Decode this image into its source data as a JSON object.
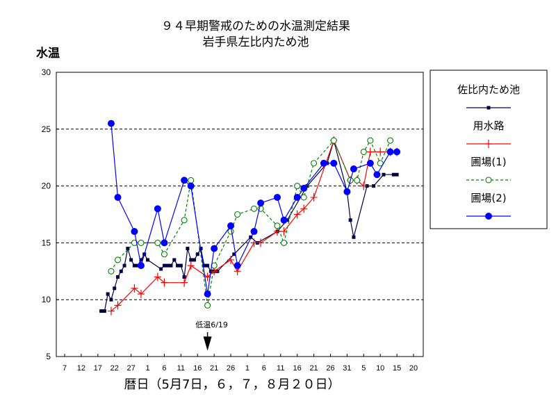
{
  "chart_data": {
    "type": "line",
    "title": [
      "９４早期警戒のための水温測定結果",
      "岩手県左比内ため池"
    ],
    "ylabel": "水温",
    "xlabel": "暦日（5月7日，６，７，８月２０日）",
    "ylim": [
      5,
      30
    ],
    "yticks": [
      5,
      10,
      15,
      20,
      25,
      30
    ],
    "xlim": [
      0,
      105
    ],
    "xticks": [
      {
        "x": 0,
        "label": "7"
      },
      {
        "x": 5,
        "label": "12"
      },
      {
        "x": 10,
        "label": "17"
      },
      {
        "x": 15,
        "label": "22"
      },
      {
        "x": 20,
        "label": "27"
      },
      {
        "x": 25,
        "label": "1"
      },
      {
        "x": 30,
        "label": "6"
      },
      {
        "x": 35,
        "label": "11"
      },
      {
        "x": 40,
        "label": "16"
      },
      {
        "x": 45,
        "label": "21"
      },
      {
        "x": 50,
        "label": "26"
      },
      {
        "x": 55,
        "label": "1"
      },
      {
        "x": 60,
        "label": "6"
      },
      {
        "x": 65,
        "label": "11"
      },
      {
        "x": 70,
        "label": "16"
      },
      {
        "x": 75,
        "label": "21"
      },
      {
        "x": 80,
        "label": "26"
      },
      {
        "x": 85,
        "label": "31"
      },
      {
        "x": 90,
        "label": "5"
      },
      {
        "x": 95,
        "label": "10"
      },
      {
        "x": 100,
        "label": "15"
      },
      {
        "x": 105,
        "label": "20"
      }
    ],
    "grid": "y-dashed",
    "legend": [
      {
        "key": "s1",
        "label": "佐比内ため池"
      },
      {
        "key": "s2",
        "label": "用水路"
      },
      {
        "key": "s3",
        "label": "圃場(1)"
      },
      {
        "key": "s4",
        "label": "圃場(2)"
      }
    ],
    "annotation": {
      "label": "低温6/19",
      "x": 43
    },
    "series": [
      {
        "key": "s1",
        "name": "佐比内ため池",
        "color": "#000040",
        "marker": "square",
        "dash": "",
        "points": [
          [
            11,
            9
          ],
          [
            12,
            9
          ],
          [
            13,
            10.5
          ],
          [
            14,
            10
          ],
          [
            15,
            11
          ],
          [
            16,
            12
          ],
          [
            17,
            12.5
          ],
          [
            18,
            13
          ],
          [
            19,
            14.5
          ],
          [
            20,
            13.5
          ],
          [
            21,
            13
          ],
          [
            22,
            13
          ],
          [
            23,
            13.5
          ],
          [
            24,
            14
          ],
          [
            25,
            13.5
          ],
          [
            29,
            12.7
          ],
          [
            30,
            13
          ],
          [
            31,
            13
          ],
          [
            32,
            13
          ],
          [
            33,
            13.5
          ],
          [
            34,
            13
          ],
          [
            35,
            13
          ],
          [
            36,
            12
          ],
          [
            37,
            14.5
          ],
          [
            38,
            13.5
          ],
          [
            39,
            13.5
          ],
          [
            40,
            14
          ],
          [
            41,
            14.5
          ],
          [
            42,
            13
          ],
          [
            43,
            13
          ],
          [
            44,
            12.5
          ],
          [
            45,
            12.5
          ],
          [
            46,
            12.5
          ],
          [
            51,
            14
          ],
          [
            56,
            15.5
          ],
          [
            58,
            15
          ],
          [
            64,
            16
          ],
          [
            67,
            17
          ],
          [
            73,
            20
          ],
          [
            79,
            22
          ],
          [
            81,
            24
          ],
          [
            85,
            19.5
          ],
          [
            86,
            17
          ],
          [
            87,
            15.5
          ],
          [
            91,
            20
          ],
          [
            93,
            20
          ],
          [
            96,
            21
          ],
          [
            99,
            21
          ],
          [
            100,
            21
          ]
        ]
      },
      {
        "key": "s2",
        "name": "用水路",
        "color": "#ff0000",
        "marker": "plus",
        "dash": "",
        "points": [
          [
            14,
            9
          ],
          [
            16,
            9.5
          ],
          [
            21,
            11
          ],
          [
            23,
            10.5
          ],
          [
            28,
            12
          ],
          [
            30,
            11.5
          ],
          [
            36,
            11.5
          ],
          [
            38,
            13
          ],
          [
            43,
            12
          ],
          [
            45,
            12.5
          ],
          [
            50,
            13.5
          ],
          [
            52,
            12.5
          ],
          [
            57,
            15
          ],
          [
            59,
            15
          ],
          [
            64,
            16
          ],
          [
            66,
            16
          ],
          [
            70,
            17.5
          ],
          [
            72,
            18
          ],
          [
            75,
            19
          ],
          [
            81,
            24
          ],
          [
            86,
            20.5
          ],
          [
            88,
            20.5
          ],
          [
            90,
            20
          ],
          [
            92,
            23
          ],
          [
            95,
            23
          ],
          [
            98,
            23
          ],
          [
            100,
            23
          ]
        ]
      },
      {
        "key": "s3",
        "name": "圃場(1)",
        "color": "#008000",
        "marker": "circle-open",
        "dash": "4,3",
        "points": [
          [
            14,
            12.5
          ],
          [
            16,
            13.5
          ],
          [
            21,
            15
          ],
          [
            23,
            15
          ],
          [
            28,
            15
          ],
          [
            30,
            14
          ],
          [
            36,
            17
          ],
          [
            38,
            20.5
          ],
          [
            43,
            9.5
          ],
          [
            45,
            13
          ],
          [
            50,
            16
          ],
          [
            52,
            17.5
          ],
          [
            57,
            18
          ],
          [
            59,
            18
          ],
          [
            64,
            16.5
          ],
          [
            66,
            15
          ],
          [
            70,
            20
          ],
          [
            72,
            19
          ],
          [
            75,
            22
          ],
          [
            81,
            24
          ],
          [
            86,
            20.5
          ],
          [
            88,
            20.5
          ],
          [
            90,
            23
          ],
          [
            92,
            24
          ],
          [
            95,
            22
          ],
          [
            98,
            24
          ]
        ]
      },
      {
        "key": "s4",
        "name": "圃場(2)",
        "color": "#0000ff",
        "marker": "circle-filled",
        "dash": "",
        "points": [
          [
            14,
            25.5
          ],
          [
            16,
            19
          ],
          [
            21,
            16
          ],
          [
            23,
            13
          ],
          [
            28,
            18
          ],
          [
            30,
            15
          ],
          [
            36,
            20.5
          ],
          [
            38,
            20
          ],
          [
            43,
            10.5
          ],
          [
            45,
            14.5
          ],
          [
            50,
            16.5
          ],
          [
            52,
            13
          ],
          [
            57,
            16
          ],
          [
            59,
            18.5
          ],
          [
            64,
            19
          ],
          [
            66,
            17
          ],
          [
            70,
            19
          ],
          [
            72,
            19.8
          ],
          [
            78,
            22
          ],
          [
            81,
            22
          ],
          [
            85,
            19.5
          ],
          [
            87,
            21.5
          ],
          [
            92,
            22
          ],
          [
            94,
            21
          ],
          [
            98,
            23
          ],
          [
            100,
            23
          ]
        ]
      }
    ]
  }
}
